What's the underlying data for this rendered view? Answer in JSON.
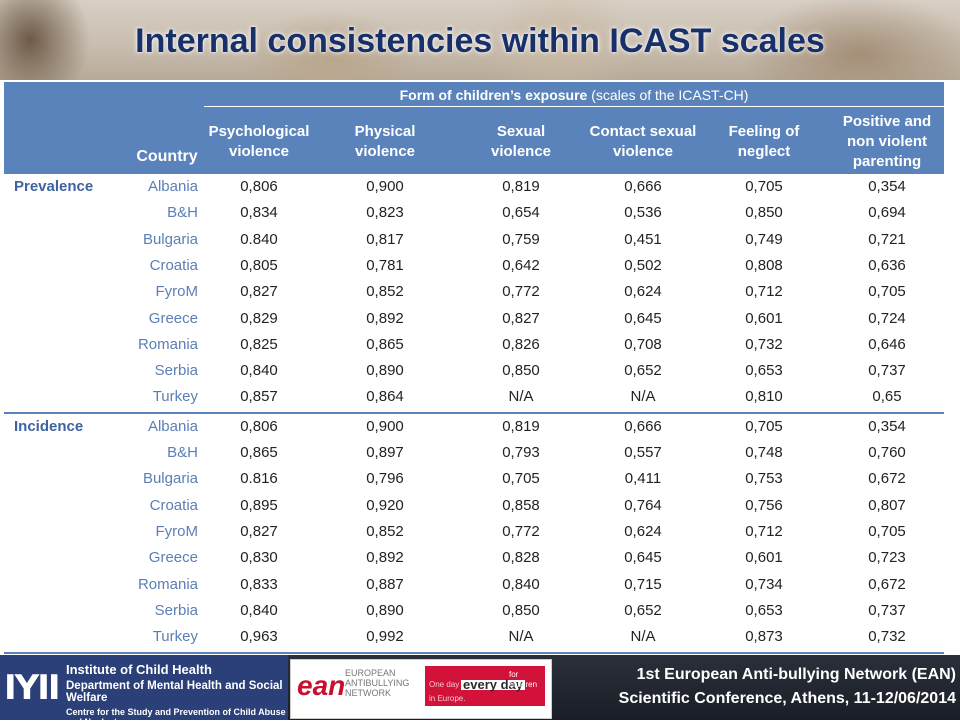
{
  "title": "Internal consistencies within ICAST scales",
  "table": {
    "super_header_bold": "Form of children’s exposure",
    "super_header_rest": " (scales of the ICAST-CH)",
    "country_header": "Country",
    "columns": [
      "Psychological violence",
      "Physical violence",
      "Sexual violence",
      "Contact sexual violence",
      "Feeling of neglect",
      "Positive and non violent parenting"
    ],
    "groups": [
      {
        "label": "Prevalence",
        "rows": [
          {
            "country": "Albania",
            "values": [
              "0,806",
              "0,900",
              "0,819",
              "0,666",
              "0,705",
              "0,354"
            ]
          },
          {
            "country": "B&H",
            "values": [
              "0,834",
              "0,823",
              "0,654",
              "0,536",
              "0,850",
              "0,694"
            ]
          },
          {
            "country": "Bulgaria",
            "values": [
              "0.840",
              "0,817",
              "0,759",
              "0,451",
              "0,749",
              "0,721"
            ]
          },
          {
            "country": "Croatia",
            "values": [
              "0,805",
              "0,781",
              "0,642",
              "0,502",
              "0,808",
              "0,636"
            ]
          },
          {
            "country": "FyroM",
            "values": [
              "0,827",
              "0,852",
              "0,772",
              "0,624",
              "0,712",
              "0,705"
            ]
          },
          {
            "country": "Greece",
            "values": [
              "0,829",
              "0,892",
              "0,827",
              "0,645",
              "0,601",
              "0,724"
            ]
          },
          {
            "country": "Romania",
            "values": [
              "0,825",
              "0,865",
              "0,826",
              "0,708",
              "0,732",
              "0,646"
            ]
          },
          {
            "country": "Serbia",
            "values": [
              "0,840",
              "0,890",
              "0,850",
              "0,652",
              "0,653",
              "0,737"
            ]
          },
          {
            "country": "Turkey",
            "values": [
              "0,857",
              "0,864",
              "N/A",
              "N/A",
              "0,810",
              "0,65"
            ]
          }
        ]
      },
      {
        "label": "Incidence",
        "rows": [
          {
            "country": "Albania",
            "values": [
              "0,806",
              "0,900",
              "0,819",
              "0,666",
              "0,705",
              "0,354"
            ]
          },
          {
            "country": "B&H",
            "values": [
              "0,865",
              "0,897",
              "0,793",
              "0,557",
              "0,748",
              "0,760"
            ]
          },
          {
            "country": "Bulgaria",
            "values": [
              "0.816",
              "0,796",
              "0,705",
              "0,411",
              "0,753",
              "0,672"
            ]
          },
          {
            "country": "Croatia",
            "values": [
              "0,895",
              "0,920",
              "0,858",
              "0,764",
              "0,756",
              "0,807"
            ]
          },
          {
            "country": "FyroM",
            "values": [
              "0,827",
              "0,852",
              "0,772",
              "0,624",
              "0,712",
              "0,705"
            ]
          },
          {
            "country": "Greece",
            "values": [
              "0,830",
              "0,892",
              "0,828",
              "0,645",
              "0,601",
              "0,723"
            ]
          },
          {
            "country": "Romania",
            "values": [
              "0,833",
              "0,887",
              "0,840",
              "0,715",
              "0,734",
              "0,672"
            ]
          },
          {
            "country": "Serbia",
            "values": [
              "0,840",
              "0,890",
              "0,850",
              "0,652",
              "0,653",
              "0,737"
            ]
          },
          {
            "country": "Turkey",
            "values": [
              "0,963",
              "0,992",
              "N/A",
              "N/A",
              "0,873",
              "0,732"
            ]
          }
        ]
      }
    ]
  },
  "footer": {
    "ich_mark": "IYII",
    "ich_line1": "Institute of Child Health",
    "ich_line2": "Department of Mental Health and Social Welfare",
    "ich_line3": "Centre for the Study and Prevention of Child Abuse and Neglect",
    "ean_mark": "ean",
    "ean_name": "EUROPEAN ANTIBULLYING NETWORK",
    "ean_oneday": "One day",
    "ean_everyday": "every day",
    "ean_for_children": "for children",
    "ean_in_europe": "in Europe.",
    "conference_line1": "1st European Anti-bullying Network (EAN)",
    "conference_line2": "Scientific Conference, Athens, 11-12/06/2014"
  },
  "colors": {
    "title": "#17306a",
    "header_fill": "#5b83bb",
    "country_text": "#5b7fb5",
    "group_label": "#3e63a0"
  }
}
